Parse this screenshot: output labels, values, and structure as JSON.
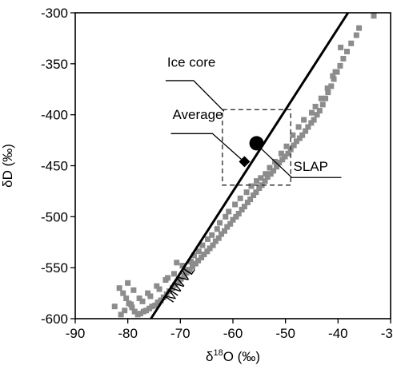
{
  "chart_data": {
    "type": "scatter",
    "title": "",
    "xlabel_prefix": "δ",
    "xlabel_sup": "18",
    "xlabel_suffix": "O (‰)",
    "ylabel": "δD (‰)",
    "xlim": [
      -90,
      -30
    ],
    "ylim": [
      -600,
      -300
    ],
    "x_ticks": [
      -90,
      -80,
      -70,
      -60,
      -50,
      -40,
      -30
    ],
    "x_tick_labels": [
      "-90",
      "-80",
      "-70",
      "-60",
      "-50",
      "-40",
      "-30"
    ],
    "y_ticks": [
      -300,
      -350,
      -400,
      -450,
      -500,
      -550,
      -600
    ],
    "y_tick_labels": [
      "-300",
      "-350",
      "-400",
      "-450",
      "-500",
      "-550",
      "-600"
    ],
    "grid": false,
    "colors": {
      "points": "#8c8c8c",
      "line": "#000000",
      "markers": "#000000",
      "box": "#333333"
    },
    "series": [
      {
        "marker": "square",
        "x": [
          -33.2,
          -36.5,
          -37.5,
          -38.3,
          -39.0,
          -39.6,
          -40.2,
          -40.8,
          -41.3,
          -41.9,
          -42.4,
          -42.9,
          -43.5,
          -44.0,
          -44.6,
          -45.1,
          -45.7,
          -46.2,
          -46.8,
          -47.3,
          -47.9,
          -48.4,
          -49.0,
          -49.5,
          -50.1,
          -50.6,
          -51.2,
          -51.7,
          -52.3,
          -52.8,
          -53.4,
          -53.9,
          -54.5,
          -55.0,
          -55.6,
          -56.1,
          -56.7,
          -57.2,
          -57.8,
          -58.3,
          -58.9,
          -59.4,
          -60.0,
          -60.5,
          -61.1,
          -61.6,
          -62.2,
          -62.7,
          -63.3,
          -63.8,
          -64.4,
          -64.9,
          -65.5,
          -66.0,
          -66.6,
          -67.1,
          -67.7,
          -68.2,
          -68.8,
          -69.3,
          -69.9,
          -70.4,
          -71.0,
          -71.5,
          -72.1,
          -72.6,
          -73.2,
          -73.7,
          -74.3,
          -74.8,
          -75.4,
          -75.9,
          -76.5,
          -77.0,
          -77.6,
          -78.1,
          -78.7,
          -79.2,
          -79.8,
          -80.3,
          -80.9,
          -81.6,
          -82.5,
          -39.5,
          -41.0,
          -43.2,
          -45.0,
          -47.5,
          -49.8,
          -52.0,
          -53.8,
          -55.5,
          -57.4,
          -59.6,
          -61.4,
          -63.0,
          -64.8,
          -66.5,
          -68.0,
          -69.6,
          -71.2,
          -72.8,
          -74.5,
          -76.2,
          -77.8,
          -79.4,
          -80.6,
          -36.0,
          -40.5,
          -42.0,
          -44.3,
          -46.5,
          -48.6,
          -50.8,
          -53.0,
          -54.7,
          -56.5,
          -58.6,
          -60.8,
          -62.5,
          -64.0,
          -65.8,
          -67.4,
          -68.9,
          -70.7,
          -72.4,
          -74.0,
          -75.7,
          -77.2,
          -78.9,
          -80.0,
          -81.3
        ],
        "y": [
          -303,
          -322,
          -330,
          -338,
          -345,
          -352,
          -358,
          -365,
          -372,
          -378,
          -384,
          -390,
          -396,
          -400,
          -405,
          -408,
          -412,
          -416,
          -420,
          -423,
          -426,
          -430,
          -434,
          -438,
          -441,
          -444,
          -447,
          -451,
          -455,
          -458,
          -461,
          -465,
          -469,
          -472,
          -476,
          -479,
          -483,
          -486,
          -490,
          -493,
          -497,
          -500,
          -503,
          -507,
          -510,
          -514,
          -517,
          -521,
          -524,
          -528,
          -531,
          -534,
          -537,
          -540,
          -543,
          -546,
          -549,
          -552,
          -555,
          -558,
          -561,
          -564,
          -567,
          -570,
          -573,
          -576,
          -579,
          -582,
          -584,
          -587,
          -588,
          -590,
          -592,
          -593,
          -595,
          -596,
          -593,
          -589,
          -585,
          -580,
          -575,
          -570,
          -588,
          -334,
          -362,
          -384,
          -398,
          -412,
          -431,
          -446,
          -458,
          -465,
          -476,
          -488,
          -500,
          -512,
          -522,
          -534,
          -544,
          -548,
          -556,
          -562,
          -568,
          -575,
          -580,
          -586,
          -592,
          -315,
          -358,
          -374,
          -392,
          -405,
          -420,
          -438,
          -452,
          -462,
          -470,
          -482,
          -495,
          -506,
          -518,
          -528,
          -538,
          -552,
          -545,
          -560,
          -571,
          -578,
          -583,
          -572,
          -565,
          -596
        ]
      }
    ],
    "reference_line": {
      "label": "MWVL",
      "x": [
        -75.6,
        -38.1
      ],
      "y": [
        -600,
        -300
      ]
    },
    "average_point": {
      "label": "Average",
      "x": -57.8,
      "y": -446,
      "marker": "diamond"
    },
    "slap_point": {
      "label": "SLAP",
      "x": -55.5,
      "y": -428,
      "marker": "circle"
    },
    "ice_core_box": {
      "label": "Ice core",
      "x": [
        -62.0,
        -49.0
      ],
      "y": [
        -395,
        -469
      ]
    },
    "annotations": [
      {
        "text": "Ice core",
        "x": -72.5,
        "y": -353
      },
      {
        "text": "Average",
        "x": -71.5,
        "y": -404
      },
      {
        "text": "SLAP",
        "x": -48.5,
        "y": -455
      },
      {
        "text": "MWVL",
        "x": -71.5,
        "y": -585
      }
    ]
  }
}
